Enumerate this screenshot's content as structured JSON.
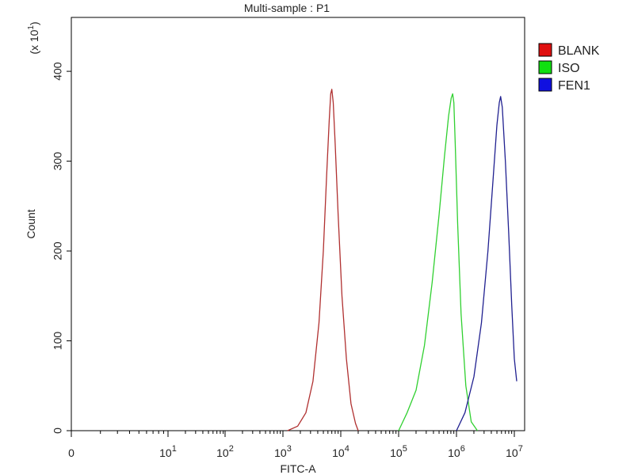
{
  "chart_data": {
    "type": "line",
    "title": "Multi-sample : P1",
    "xlabel": "FITC-A",
    "ylabel": "Count",
    "y_multiplier_label": "(x 10",
    "y_multiplier_exp": "1",
    "y_multiplier_close": ")",
    "x_scale": "log",
    "x_ticks": [
      {
        "value": 0,
        "base": "0",
        "exp": ""
      },
      {
        "value": 10,
        "base": "10",
        "exp": "1"
      },
      {
        "value": 100,
        "base": "10",
        "exp": "2"
      },
      {
        "value": 1000,
        "base": "10",
        "exp": "3"
      },
      {
        "value": 10000,
        "base": "10",
        "exp": "4"
      },
      {
        "value": 100000,
        "base": "10",
        "exp": "5"
      },
      {
        "value": 1000000,
        "base": "10",
        "exp": "6"
      },
      {
        "value": 10000000,
        "base": "10",
        "exp": "7"
      }
    ],
    "y_ticks": [
      {
        "value": 0,
        "label": "0"
      },
      {
        "value": 100,
        "label": "100"
      },
      {
        "value": 200,
        "label": "200"
      },
      {
        "value": 300,
        "label": "300"
      },
      {
        "value": 400,
        "label": "400"
      }
    ],
    "ylim": [
      0,
      460
    ],
    "legend_position": "top-right",
    "grid": false,
    "series": [
      {
        "name": "BLANK",
        "color": "#e01010",
        "line_color": "#b03030",
        "x": [
          1200,
          1800,
          2500,
          3300,
          4200,
          5000,
          5700,
          6300,
          6700,
          7000,
          7400,
          8000,
          9000,
          10500,
          12500,
          15000,
          18000,
          20000
        ],
        "y": [
          0,
          5,
          20,
          55,
          120,
          200,
          285,
          345,
          375,
          380,
          365,
          320,
          240,
          150,
          80,
          30,
          8,
          0
        ]
      },
      {
        "name": "ISO",
        "color": "#10e010",
        "line_color": "#30d030",
        "x": [
          100000,
          140000,
          200000,
          280000,
          380000,
          500000,
          620000,
          730000,
          810000,
          860000,
          900000,
          950000,
          1050000,
          1200000,
          1450000,
          1800000,
          2300000
        ],
        "y": [
          0,
          20,
          45,
          95,
          165,
          240,
          305,
          350,
          370,
          375,
          365,
          320,
          230,
          130,
          50,
          10,
          0
        ]
      },
      {
        "name": "FEN1",
        "color": "#1010e0",
        "line_color": "#202090",
        "x": [
          1000000,
          1400000,
          2000000,
          2700000,
          3500000,
          4300000,
          5000000,
          5500000,
          5800000,
          6200000,
          7000000,
          8000000,
          9000000,
          10000000,
          11000000
        ],
        "y": [
          0,
          20,
          60,
          120,
          200,
          280,
          340,
          365,
          372,
          360,
          300,
          220,
          140,
          80,
          55
        ]
      }
    ]
  }
}
